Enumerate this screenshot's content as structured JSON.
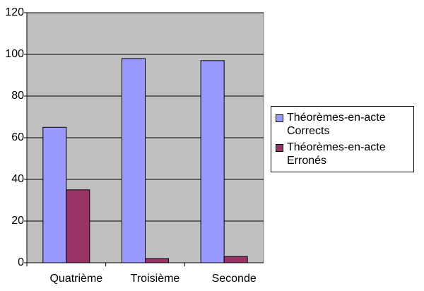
{
  "chart_data": {
    "type": "bar",
    "categories": [
      "Quatrième",
      "Troisième",
      "Seconde"
    ],
    "series": [
      {
        "name": "Théorèmes-en-acte Corrects",
        "color": "#9999ff",
        "values": [
          65,
          98,
          97
        ]
      },
      {
        "name": "Théorèmes-en-acte Erronés",
        "color": "#993366",
        "values": [
          35,
          2,
          3
        ]
      }
    ],
    "ylim": [
      0,
      120
    ],
    "yticks": [
      0,
      20,
      40,
      60,
      80,
      100,
      120
    ],
    "grid": true,
    "legend": "right"
  }
}
